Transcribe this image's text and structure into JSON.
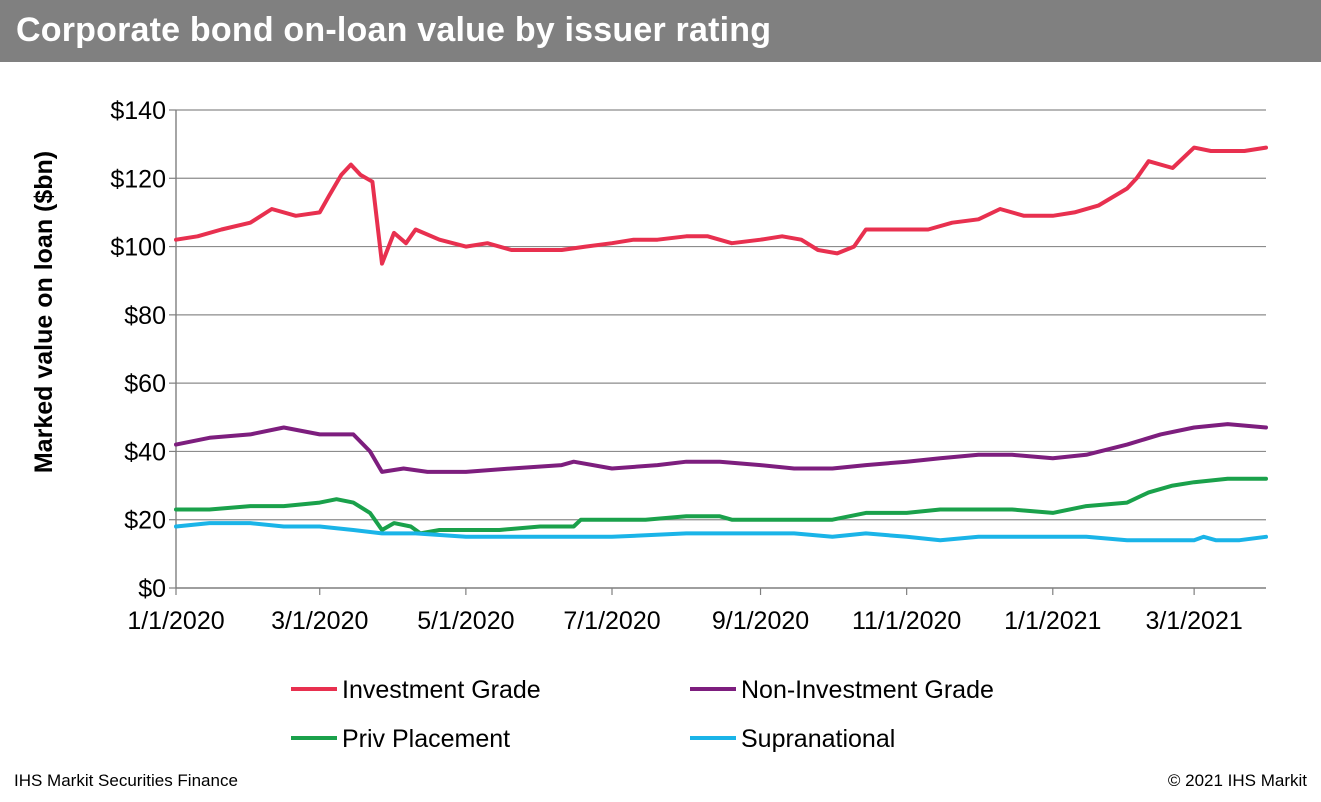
{
  "header": {
    "title": "Corporate bond on-loan value by issuer rating"
  },
  "footer": {
    "source": "IHS Markit Securities Finance",
    "copyright": "© 2021 IHS Markit"
  },
  "colors": {
    "header_bg": "#808080",
    "grid": "#8c8c8c",
    "axis": "#7f7f7f"
  },
  "chart_data": {
    "type": "line",
    "ylabel": "Marked value on loan ($bn)",
    "ylim": [
      0,
      140
    ],
    "xlim": [
      "2020-01-01",
      "2021-03-31"
    ],
    "yticks": [
      0,
      20,
      40,
      60,
      80,
      100,
      120,
      140
    ],
    "ytick_labels": [
      "$0",
      "$20",
      "$40",
      "$60",
      "$80",
      "$100",
      "$120",
      "$140"
    ],
    "xticks": [
      "2020-01-01",
      "2020-03-01",
      "2020-05-01",
      "2020-07-01",
      "2020-09-01",
      "2020-11-01",
      "2021-01-01",
      "2021-03-01"
    ],
    "xtick_labels": [
      "1/1/2020",
      "3/1/2020",
      "5/1/2020",
      "7/1/2020",
      "9/1/2020",
      "11/1/2020",
      "1/1/2021",
      "3/1/2021"
    ],
    "grid": "horizontal",
    "legend_position": "bottom",
    "series": [
      {
        "name": "Investment Grade",
        "color": "#e8304f",
        "points": [
          [
            "2020-01-01",
            102
          ],
          [
            "2020-01-10",
            103
          ],
          [
            "2020-01-20",
            105
          ],
          [
            "2020-02-01",
            107
          ],
          [
            "2020-02-10",
            111
          ],
          [
            "2020-02-20",
            109
          ],
          [
            "2020-03-01",
            110
          ],
          [
            "2020-03-05",
            115
          ],
          [
            "2020-03-10",
            121
          ],
          [
            "2020-03-14",
            124
          ],
          [
            "2020-03-18",
            121
          ],
          [
            "2020-03-23",
            119
          ],
          [
            "2020-03-27",
            95
          ],
          [
            "2020-04-01",
            104
          ],
          [
            "2020-04-06",
            101
          ],
          [
            "2020-04-10",
            105
          ],
          [
            "2020-04-20",
            102
          ],
          [
            "2020-05-01",
            100
          ],
          [
            "2020-05-10",
            101
          ],
          [
            "2020-05-20",
            99
          ],
          [
            "2020-06-01",
            99
          ],
          [
            "2020-06-10",
            99
          ],
          [
            "2020-06-20",
            100
          ],
          [
            "2020-07-01",
            101
          ],
          [
            "2020-07-10",
            102
          ],
          [
            "2020-07-20",
            102
          ],
          [
            "2020-08-01",
            103
          ],
          [
            "2020-08-10",
            103
          ],
          [
            "2020-08-20",
            101
          ],
          [
            "2020-09-01",
            102
          ],
          [
            "2020-09-10",
            103
          ],
          [
            "2020-09-18",
            102
          ],
          [
            "2020-09-25",
            99
          ],
          [
            "2020-10-03",
            98
          ],
          [
            "2020-10-10",
            100
          ],
          [
            "2020-10-15",
            105
          ],
          [
            "2020-10-25",
            105
          ],
          [
            "2020-11-01",
            105
          ],
          [
            "2020-11-10",
            105
          ],
          [
            "2020-11-20",
            107
          ],
          [
            "2020-12-01",
            108
          ],
          [
            "2020-12-10",
            111
          ],
          [
            "2020-12-20",
            109
          ],
          [
            "2021-01-01",
            109
          ],
          [
            "2021-01-10",
            110
          ],
          [
            "2021-01-20",
            112
          ],
          [
            "2021-02-01",
            117
          ],
          [
            "2021-02-05",
            120
          ],
          [
            "2021-02-10",
            125
          ],
          [
            "2021-02-20",
            123
          ],
          [
            "2021-03-01",
            129
          ],
          [
            "2021-03-08",
            128
          ],
          [
            "2021-03-15",
            128
          ],
          [
            "2021-03-22",
            128
          ],
          [
            "2021-03-31",
            129
          ]
        ]
      },
      {
        "name": "Non-Investment Grade",
        "color": "#7d1e7e",
        "points": [
          [
            "2020-01-01",
            42
          ],
          [
            "2020-01-15",
            44
          ],
          [
            "2020-02-01",
            45
          ],
          [
            "2020-02-15",
            47
          ],
          [
            "2020-03-01",
            45
          ],
          [
            "2020-03-15",
            45
          ],
          [
            "2020-03-22",
            40
          ],
          [
            "2020-03-27",
            34
          ],
          [
            "2020-04-05",
            35
          ],
          [
            "2020-04-15",
            34
          ],
          [
            "2020-05-01",
            34
          ],
          [
            "2020-05-20",
            35
          ],
          [
            "2020-06-10",
            36
          ],
          [
            "2020-06-15",
            37
          ],
          [
            "2020-07-01",
            35
          ],
          [
            "2020-07-20",
            36
          ],
          [
            "2020-08-01",
            37
          ],
          [
            "2020-08-15",
            37
          ],
          [
            "2020-09-01",
            36
          ],
          [
            "2020-09-15",
            35
          ],
          [
            "2020-10-01",
            35
          ],
          [
            "2020-10-15",
            36
          ],
          [
            "2020-11-01",
            37
          ],
          [
            "2020-11-15",
            38
          ],
          [
            "2020-12-01",
            39
          ],
          [
            "2020-12-15",
            39
          ],
          [
            "2021-01-01",
            38
          ],
          [
            "2021-01-15",
            39
          ],
          [
            "2021-02-01",
            42
          ],
          [
            "2021-02-15",
            45
          ],
          [
            "2021-03-01",
            47
          ],
          [
            "2021-03-15",
            48
          ],
          [
            "2021-03-31",
            47
          ]
        ]
      },
      {
        "name": "Priv Placement",
        "color": "#1aa14b",
        "points": [
          [
            "2020-01-01",
            23
          ],
          [
            "2020-01-15",
            23
          ],
          [
            "2020-02-01",
            24
          ],
          [
            "2020-02-15",
            24
          ],
          [
            "2020-03-01",
            25
          ],
          [
            "2020-03-08",
            26
          ],
          [
            "2020-03-15",
            25
          ],
          [
            "2020-03-22",
            22
          ],
          [
            "2020-03-27",
            17
          ],
          [
            "2020-04-01",
            19
          ],
          [
            "2020-04-08",
            18
          ],
          [
            "2020-04-12",
            16
          ],
          [
            "2020-04-20",
            17
          ],
          [
            "2020-05-01",
            17
          ],
          [
            "2020-05-15",
            17
          ],
          [
            "2020-06-01",
            18
          ],
          [
            "2020-06-15",
            18
          ],
          [
            "2020-06-18",
            20
          ],
          [
            "2020-07-01",
            20
          ],
          [
            "2020-07-15",
            20
          ],
          [
            "2020-08-01",
            21
          ],
          [
            "2020-08-15",
            21
          ],
          [
            "2020-08-20",
            20
          ],
          [
            "2020-09-01",
            20
          ],
          [
            "2020-09-15",
            20
          ],
          [
            "2020-10-01",
            20
          ],
          [
            "2020-10-15",
            22
          ],
          [
            "2020-11-01",
            22
          ],
          [
            "2020-11-15",
            23
          ],
          [
            "2020-12-01",
            23
          ],
          [
            "2020-12-15",
            23
          ],
          [
            "2021-01-01",
            22
          ],
          [
            "2021-01-15",
            24
          ],
          [
            "2021-02-01",
            25
          ],
          [
            "2021-02-10",
            28
          ],
          [
            "2021-02-20",
            30
          ],
          [
            "2021-03-01",
            31
          ],
          [
            "2021-03-15",
            32
          ],
          [
            "2021-03-31",
            32
          ]
        ]
      },
      {
        "name": "Supranational",
        "color": "#1ab4e8",
        "points": [
          [
            "2020-01-01",
            18
          ],
          [
            "2020-01-15",
            19
          ],
          [
            "2020-02-01",
            19
          ],
          [
            "2020-02-15",
            18
          ],
          [
            "2020-03-01",
            18
          ],
          [
            "2020-03-15",
            17
          ],
          [
            "2020-03-27",
            16
          ],
          [
            "2020-04-10",
            16
          ],
          [
            "2020-05-01",
            15
          ],
          [
            "2020-05-15",
            15
          ],
          [
            "2020-06-01",
            15
          ],
          [
            "2020-06-15",
            15
          ],
          [
            "2020-07-01",
            15
          ],
          [
            "2020-08-01",
            16
          ],
          [
            "2020-09-01",
            16
          ],
          [
            "2020-09-15",
            16
          ],
          [
            "2020-10-01",
            15
          ],
          [
            "2020-10-15",
            16
          ],
          [
            "2020-11-01",
            15
          ],
          [
            "2020-11-15",
            14
          ],
          [
            "2020-12-01",
            15
          ],
          [
            "2020-12-15",
            15
          ],
          [
            "2021-01-01",
            15
          ],
          [
            "2021-01-15",
            15
          ],
          [
            "2021-02-01",
            14
          ],
          [
            "2021-02-15",
            14
          ],
          [
            "2021-03-01",
            14
          ],
          [
            "2021-03-05",
            15
          ],
          [
            "2021-03-10",
            14
          ],
          [
            "2021-03-20",
            14
          ],
          [
            "2021-03-31",
            15
          ]
        ]
      }
    ]
  }
}
